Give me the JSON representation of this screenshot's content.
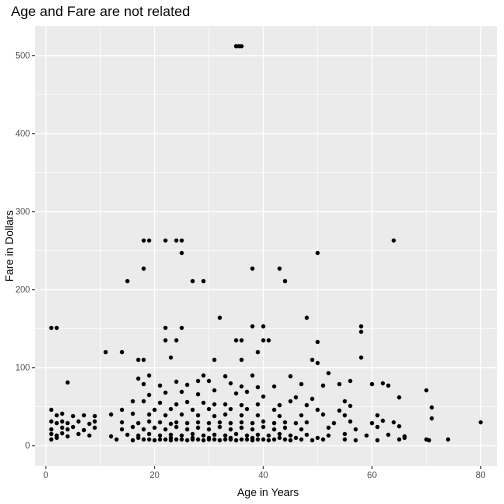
{
  "chart_data": {
    "type": "scatter",
    "title": "Age and Fare are not related",
    "xlabel": "Age in Years",
    "ylabel": "Fare in Dollars",
    "xlim": [
      -2,
      83
    ],
    "ylim": [
      -26,
      538
    ],
    "xticks": [
      0,
      20,
      40,
      60,
      80
    ],
    "yticks": [
      0,
      100,
      200,
      300,
      400,
      500
    ],
    "xtick_labels": [
      "0",
      "20",
      "40",
      "60",
      "80"
    ],
    "ytick_labels": [
      "0",
      "100",
      "200",
      "300",
      "400",
      "500"
    ],
    "grid": true,
    "panel_background": "#ebebeb",
    "grid_color": "#ffffff",
    "point_color": "#000000",
    "points": [
      {
        "x": 35,
        "y": 512
      },
      {
        "x": 36,
        "y": 512
      },
      {
        "x": 35.5,
        "y": 512
      },
      {
        "x": 18,
        "y": 263
      },
      {
        "x": 19,
        "y": 263
      },
      {
        "x": 22,
        "y": 263
      },
      {
        "x": 24,
        "y": 263
      },
      {
        "x": 25,
        "y": 263
      },
      {
        "x": 64,
        "y": 263
      },
      {
        "x": 25,
        "y": 247
      },
      {
        "x": 50,
        "y": 247
      },
      {
        "x": 18,
        "y": 227
      },
      {
        "x": 38,
        "y": 227
      },
      {
        "x": 43,
        "y": 227
      },
      {
        "x": 15,
        "y": 211
      },
      {
        "x": 27,
        "y": 211
      },
      {
        "x": 29,
        "y": 211
      },
      {
        "x": 44,
        "y": 211
      },
      {
        "x": 32,
        "y": 164
      },
      {
        "x": 48,
        "y": 164
      },
      {
        "x": 1,
        "y": 151
      },
      {
        "x": 2,
        "y": 151
      },
      {
        "x": 22,
        "y": 151
      },
      {
        "x": 25,
        "y": 151
      },
      {
        "x": 38,
        "y": 153
      },
      {
        "x": 40,
        "y": 153
      },
      {
        "x": 58,
        "y": 153
      },
      {
        "x": 58,
        "y": 146
      },
      {
        "x": 22,
        "y": 135
      },
      {
        "x": 24,
        "y": 135
      },
      {
        "x": 35,
        "y": 135
      },
      {
        "x": 36,
        "y": 135
      },
      {
        "x": 40,
        "y": 135
      },
      {
        "x": 41,
        "y": 135
      },
      {
        "x": 50,
        "y": 133
      },
      {
        "x": 39,
        "y": 120
      },
      {
        "x": 11,
        "y": 120
      },
      {
        "x": 14,
        "y": 120
      },
      {
        "x": 23,
        "y": 113
      },
      {
        "x": 58,
        "y": 113
      },
      {
        "x": 17,
        "y": 110
      },
      {
        "x": 18,
        "y": 110
      },
      {
        "x": 31,
        "y": 110
      },
      {
        "x": 36,
        "y": 110
      },
      {
        "x": 49,
        "y": 110
      },
      {
        "x": 50,
        "y": 106
      },
      {
        "x": 4,
        "y": 81
      },
      {
        "x": 17,
        "y": 86
      },
      {
        "x": 19,
        "y": 90
      },
      {
        "x": 29,
        "y": 90
      },
      {
        "x": 33,
        "y": 89
      },
      {
        "x": 38,
        "y": 90
      },
      {
        "x": 45,
        "y": 89
      },
      {
        "x": 52,
        "y": 93
      },
      {
        "x": 56,
        "y": 83
      },
      {
        "x": 28,
        "y": 83
      },
      {
        "x": 30,
        "y": 83
      },
      {
        "x": 24,
        "y": 82
      },
      {
        "x": 34,
        "y": 80
      },
      {
        "x": 47,
        "y": 79
      },
      {
        "x": 54,
        "y": 79
      },
      {
        "x": 60,
        "y": 79
      },
      {
        "x": 62,
        "y": 80
      },
      {
        "x": 63,
        "y": 77
      },
      {
        "x": 26,
        "y": 78
      },
      {
        "x": 36,
        "y": 76
      },
      {
        "x": 39,
        "y": 75
      },
      {
        "x": 21,
        "y": 77
      },
      {
        "x": 18,
        "y": 79
      },
      {
        "x": 42,
        "y": 76
      },
      {
        "x": 51,
        "y": 77
      },
      {
        "x": 70,
        "y": 71
      },
      {
        "x": 65,
        "y": 62
      },
      {
        "x": 71,
        "y": 49
      },
      {
        "x": 71,
        "y": 35
      },
      {
        "x": 80,
        "y": 30
      },
      {
        "x": 19,
        "y": 65
      },
      {
        "x": 22,
        "y": 68
      },
      {
        "x": 25,
        "y": 69
      },
      {
        "x": 28,
        "y": 66
      },
      {
        "x": 31,
        "y": 71
      },
      {
        "x": 35,
        "y": 67
      },
      {
        "x": 37,
        "y": 69
      },
      {
        "x": 40,
        "y": 63
      },
      {
        "x": 46,
        "y": 62
      },
      {
        "x": 49,
        "y": 60
      },
      {
        "x": 16,
        "y": 57
      },
      {
        "x": 18,
        "y": 57
      },
      {
        "x": 21,
        "y": 55
      },
      {
        "x": 24,
        "y": 53
      },
      {
        "x": 26,
        "y": 56
      },
      {
        "x": 29,
        "y": 55
      },
      {
        "x": 31,
        "y": 53
      },
      {
        "x": 33,
        "y": 53
      },
      {
        "x": 36,
        "y": 52
      },
      {
        "x": 39,
        "y": 53
      },
      {
        "x": 43,
        "y": 52
      },
      {
        "x": 45,
        "y": 57
      },
      {
        "x": 48,
        "y": 52
      },
      {
        "x": 55,
        "y": 57
      },
      {
        "x": 56,
        "y": 51
      },
      {
        "x": 14,
        "y": 46
      },
      {
        "x": 20,
        "y": 46
      },
      {
        "x": 23,
        "y": 47
      },
      {
        "x": 27,
        "y": 46
      },
      {
        "x": 30,
        "y": 47
      },
      {
        "x": 34,
        "y": 47
      },
      {
        "x": 37,
        "y": 47
      },
      {
        "x": 42,
        "y": 46
      },
      {
        "x": 50,
        "y": 46
      },
      {
        "x": 54,
        "y": 45
      },
      {
        "x": 1,
        "y": 46
      },
      {
        "x": 2,
        "y": 39
      },
      {
        "x": 3,
        "y": 41
      },
      {
        "x": 5,
        "y": 38
      },
      {
        "x": 7,
        "y": 39
      },
      {
        "x": 9,
        "y": 38
      },
      {
        "x": 12,
        "y": 40
      },
      {
        "x": 16,
        "y": 41
      },
      {
        "x": 19,
        "y": 40
      },
      {
        "x": 22,
        "y": 39
      },
      {
        "x": 25,
        "y": 40
      },
      {
        "x": 28,
        "y": 39
      },
      {
        "x": 31,
        "y": 38
      },
      {
        "x": 33,
        "y": 40
      },
      {
        "x": 36,
        "y": 39
      },
      {
        "x": 39,
        "y": 39
      },
      {
        "x": 43,
        "y": 38
      },
      {
        "x": 47,
        "y": 39
      },
      {
        "x": 51,
        "y": 40
      },
      {
        "x": 55,
        "y": 39
      },
      {
        "x": 61,
        "y": 39
      },
      {
        "x": 62,
        "y": 32
      },
      {
        "x": 1,
        "y": 31
      },
      {
        "x": 2,
        "y": 29
      },
      {
        "x": 3,
        "y": 31
      },
      {
        "x": 4,
        "y": 29
      },
      {
        "x": 6,
        "y": 31
      },
      {
        "x": 8,
        "y": 28
      },
      {
        "x": 9,
        "y": 31
      },
      {
        "x": 14,
        "y": 30
      },
      {
        "x": 17,
        "y": 29
      },
      {
        "x": 19,
        "y": 31
      },
      {
        "x": 21,
        "y": 30
      },
      {
        "x": 23,
        "y": 28
      },
      {
        "x": 24,
        "y": 30
      },
      {
        "x": 26,
        "y": 29
      },
      {
        "x": 28,
        "y": 30
      },
      {
        "x": 30,
        "y": 29
      },
      {
        "x": 32,
        "y": 30
      },
      {
        "x": 34,
        "y": 29
      },
      {
        "x": 36,
        "y": 30
      },
      {
        "x": 38,
        "y": 29
      },
      {
        "x": 40,
        "y": 31
      },
      {
        "x": 42,
        "y": 29
      },
      {
        "x": 44,
        "y": 30
      },
      {
        "x": 46,
        "y": 29
      },
      {
        "x": 48,
        "y": 30
      },
      {
        "x": 53,
        "y": 29
      },
      {
        "x": 56,
        "y": 31
      },
      {
        "x": 60,
        "y": 29
      },
      {
        "x": 64,
        "y": 30
      },
      {
        "x": 1,
        "y": 21
      },
      {
        "x": 3,
        "y": 23
      },
      {
        "x": 4,
        "y": 21
      },
      {
        "x": 5,
        "y": 24
      },
      {
        "x": 7,
        "y": 20
      },
      {
        "x": 9,
        "y": 23
      },
      {
        "x": 14,
        "y": 21
      },
      {
        "x": 16,
        "y": 24
      },
      {
        "x": 18,
        "y": 21
      },
      {
        "x": 20,
        "y": 23
      },
      {
        "x": 22,
        "y": 21
      },
      {
        "x": 24,
        "y": 24
      },
      {
        "x": 26,
        "y": 21
      },
      {
        "x": 28,
        "y": 23
      },
      {
        "x": 30,
        "y": 21
      },
      {
        "x": 32,
        "y": 24
      },
      {
        "x": 34,
        "y": 21
      },
      {
        "x": 36,
        "y": 23
      },
      {
        "x": 38,
        "y": 21
      },
      {
        "x": 40,
        "y": 24
      },
      {
        "x": 42,
        "y": 21
      },
      {
        "x": 44,
        "y": 23
      },
      {
        "x": 47,
        "y": 21
      },
      {
        "x": 52,
        "y": 23
      },
      {
        "x": 57,
        "y": 21
      },
      {
        "x": 61,
        "y": 24
      },
      {
        "x": 65,
        "y": 25
      },
      {
        "x": 1,
        "y": 15
      },
      {
        "x": 2,
        "y": 13
      },
      {
        "x": 3,
        "y": 16
      },
      {
        "x": 4,
        "y": 12
      },
      {
        "x": 6,
        "y": 15
      },
      {
        "x": 8,
        "y": 13
      },
      {
        "x": 12,
        "y": 12
      },
      {
        "x": 15,
        "y": 14
      },
      {
        "x": 17,
        "y": 13
      },
      {
        "x": 19,
        "y": 15
      },
      {
        "x": 21,
        "y": 13
      },
      {
        "x": 23,
        "y": 14
      },
      {
        "x": 25,
        "y": 13
      },
      {
        "x": 27,
        "y": 15
      },
      {
        "x": 29,
        "y": 13
      },
      {
        "x": 31,
        "y": 14
      },
      {
        "x": 33,
        "y": 13
      },
      {
        "x": 35,
        "y": 15
      },
      {
        "x": 37,
        "y": 13
      },
      {
        "x": 39,
        "y": 14
      },
      {
        "x": 41,
        "y": 13
      },
      {
        "x": 43,
        "y": 15
      },
      {
        "x": 45,
        "y": 13
      },
      {
        "x": 48,
        "y": 14
      },
      {
        "x": 52,
        "y": 13
      },
      {
        "x": 55,
        "y": 15
      },
      {
        "x": 59,
        "y": 13
      },
      {
        "x": 63,
        "y": 14
      },
      {
        "x": 66,
        "y": 12
      },
      {
        "x": 1,
        "y": 8
      },
      {
        "x": 2,
        "y": 10
      },
      {
        "x": 13,
        "y": 8
      },
      {
        "x": 16,
        "y": 7
      },
      {
        "x": 18,
        "y": 8
      },
      {
        "x": 19,
        "y": 8
      },
      {
        "x": 20,
        "y": 7
      },
      {
        "x": 21,
        "y": 8
      },
      {
        "x": 22,
        "y": 8
      },
      {
        "x": 23,
        "y": 7
      },
      {
        "x": 24,
        "y": 8
      },
      {
        "x": 25,
        "y": 8
      },
      {
        "x": 26,
        "y": 7
      },
      {
        "x": 27,
        "y": 8
      },
      {
        "x": 28,
        "y": 8
      },
      {
        "x": 29,
        "y": 7
      },
      {
        "x": 30,
        "y": 8
      },
      {
        "x": 31,
        "y": 8
      },
      {
        "x": 32,
        "y": 7
      },
      {
        "x": 33,
        "y": 8
      },
      {
        "x": 34,
        "y": 8
      },
      {
        "x": 35,
        "y": 7
      },
      {
        "x": 36,
        "y": 8
      },
      {
        "x": 37,
        "y": 8
      },
      {
        "x": 38,
        "y": 7
      },
      {
        "x": 39,
        "y": 8
      },
      {
        "x": 40,
        "y": 8
      },
      {
        "x": 41,
        "y": 7
      },
      {
        "x": 42,
        "y": 8
      },
      {
        "x": 44,
        "y": 8
      },
      {
        "x": 45,
        "y": 7
      },
      {
        "x": 47,
        "y": 8
      },
      {
        "x": 49,
        "y": 7
      },
      {
        "x": 51,
        "y": 8
      },
      {
        "x": 55,
        "y": 8
      },
      {
        "x": 57,
        "y": 7
      },
      {
        "x": 61,
        "y": 7
      },
      {
        "x": 65,
        "y": 8
      },
      {
        "x": 66,
        "y": 10
      },
      {
        "x": 70,
        "y": 8
      },
      {
        "x": 70.5,
        "y": 7
      },
      {
        "x": 74,
        "y": 8
      },
      {
        "x": 17,
        "y": 10
      },
      {
        "x": 23,
        "y": 10
      },
      {
        "x": 27,
        "y": 10
      },
      {
        "x": 30,
        "y": 10
      },
      {
        "x": 34,
        "y": 10
      },
      {
        "x": 38,
        "y": 10
      },
      {
        "x": 43,
        "y": 10
      },
      {
        "x": 46,
        "y": 10
      },
      {
        "x": 50,
        "y": 10
      }
    ]
  }
}
